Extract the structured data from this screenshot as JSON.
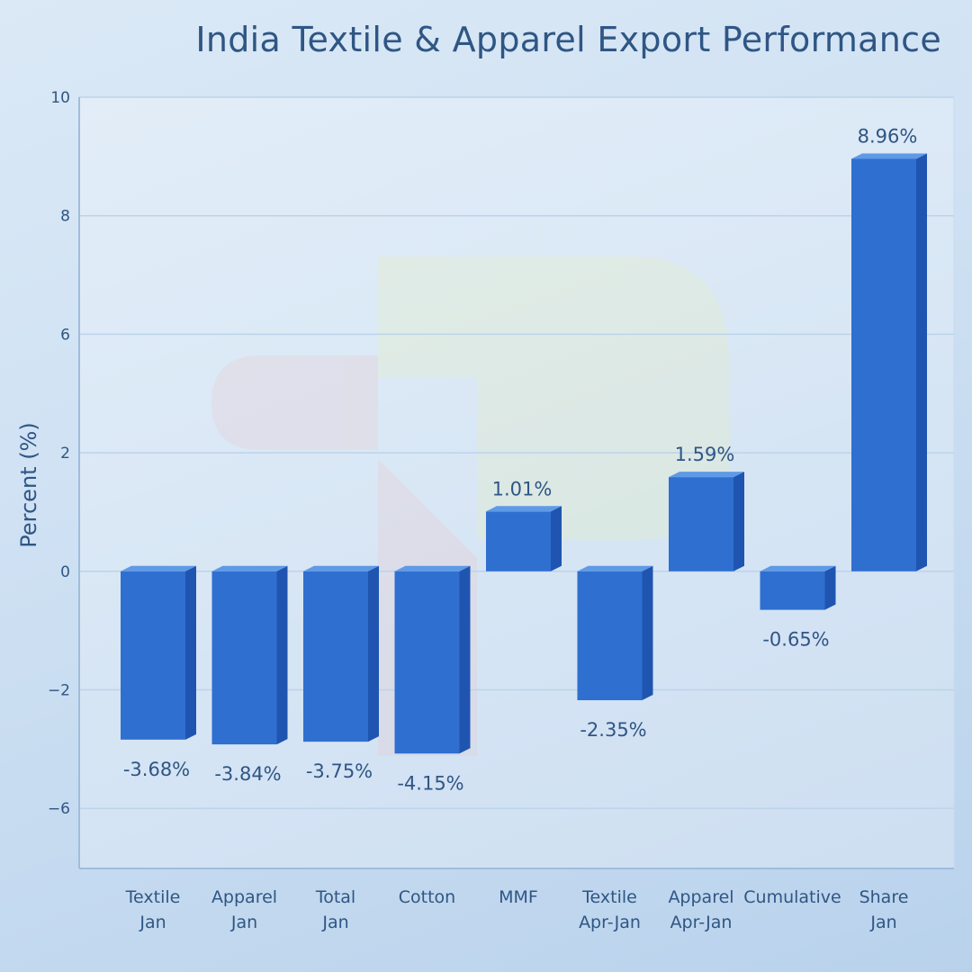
{
  "chart_data": {
    "type": "bar",
    "title": "India Textile & Apparel Export Performance",
    "xlabel": "",
    "ylabel": "Percent (%)",
    "y_tick_labels": [
      "10",
      "8",
      "6",
      "2",
      "0",
      "−2",
      "−6"
    ],
    "y_tick_values": [
      10,
      8,
      6,
      2,
      0,
      -2,
      -6
    ],
    "ylim": [
      -7,
      10
    ],
    "grid": true,
    "categories": [
      [
        "Textile",
        "Jan"
      ],
      [
        "Apparel",
        "Jan"
      ],
      [
        "Total",
        "Jan"
      ],
      [
        "Cotton"
      ],
      [
        "MMF"
      ],
      [
        "Textile",
        "Apr-Jan"
      ],
      [
        "Apparel",
        "Apr-Jan"
      ],
      [
        "Cumulative"
      ],
      [
        "Share",
        "Jan"
      ]
    ],
    "values": [
      -3.68,
      -3.84,
      -3.75,
      -4.15,
      1.01,
      -2.35,
      1.59,
      -0.65,
      8.96
    ],
    "data_labels": [
      "-3.68%",
      "-3.84%",
      "-3.75%",
      "-4.15%",
      "1.01%",
      "-2.35%",
      "1.59%",
      "-0.65%",
      "8.96%"
    ],
    "colors": {
      "bar": "#2f6fd0",
      "bar_side": "#1f55b0",
      "bar_top": "#5e9ae6",
      "text": "#2f5684"
    }
  }
}
